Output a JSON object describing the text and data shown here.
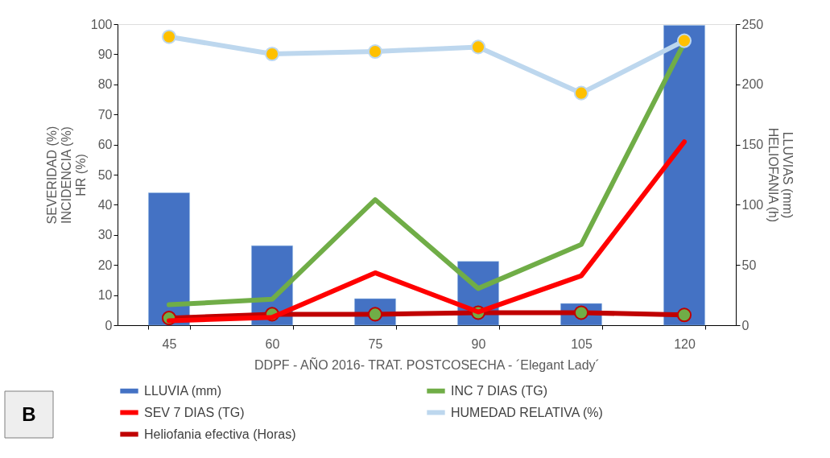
{
  "chart_data": {
    "type": "line",
    "xlabel": "DDPF - AÑO 2016- TRAT. POSTCOSECHA - ´Elegant Lady´",
    "ylabel": "SEVERIDAD (%)\nINCIDENCIA (%)\nHR (%)",
    "y2label": "LLUVIAS (mm)\nHELIOFANIA (h)",
    "categories": [
      "45",
      "60",
      "75",
      "90",
      "105",
      "120"
    ],
    "series": [
      {
        "name": "LLUVIA (mm)",
        "type": "bar",
        "axis": "y2",
        "color": "#4472c4",
        "values": [
          110,
          66,
          22,
          53,
          18,
          249
        ]
      },
      {
        "name": "INC 7 DIAS (TG)",
        "color": "#70ad47",
        "marker": "none",
        "values": [
          6.8,
          8.6,
          41.7,
          12.2,
          26.8,
          93.8
        ]
      },
      {
        "name": "SEV 7 DIAS (TG)",
        "color": "#ff0000",
        "marker": "none",
        "values": [
          1.5,
          2.6,
          17.4,
          4.4,
          16.4,
          60.9
        ]
      },
      {
        "name": "HUMEDAD RELATIVA (%)",
        "color": "#bdd7ee",
        "marker": "circle",
        "values": [
          95.8,
          90.1,
          90.9,
          92.4,
          77.1,
          94.5
        ]
      },
      {
        "name": "Heliofania efectiva (Horas)",
        "axis": "y2",
        "color": "#c00000",
        "marker": "circle",
        "values": [
          5.9,
          9.1,
          9.1,
          10.4,
          10.4,
          8.5
        ]
      }
    ],
    "ylim": [
      0,
      100
    ],
    "yticks": [
      0,
      10,
      20,
      30,
      40,
      50,
      60,
      70,
      80,
      90,
      100
    ],
    "y2lim": [
      0,
      250
    ],
    "y2ticks": [
      0,
      50,
      100,
      150,
      200,
      250
    ],
    "grid": false,
    "legend": "bottom",
    "annotations": [
      "B"
    ]
  }
}
